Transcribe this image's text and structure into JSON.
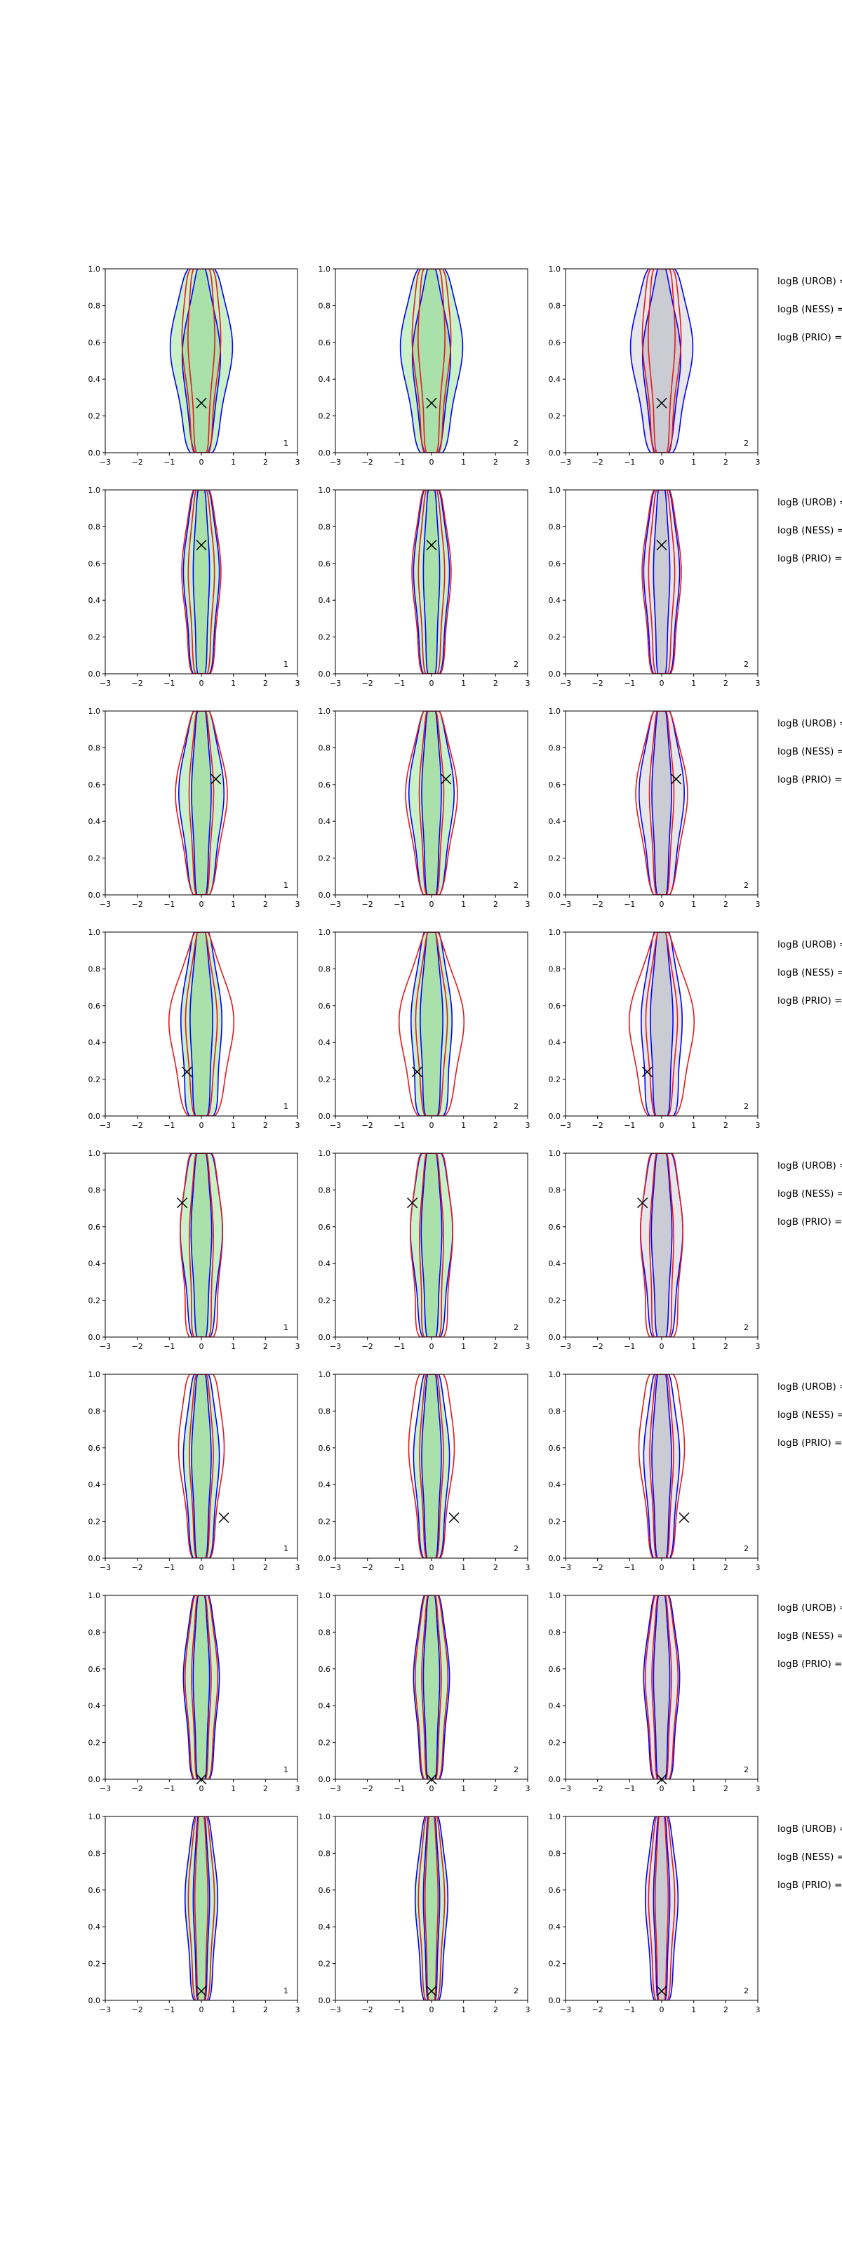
{
  "figure": {
    "rows": 8,
    "cols": 3
  },
  "chart_data": {
    "type": "contour-grid",
    "xlim": [
      -3,
      3
    ],
    "ylim": [
      0,
      1
    ],
    "xticks": [
      -3,
      -2,
      -1,
      0,
      1,
      2,
      3
    ],
    "yticks": [
      0.0,
      0.2,
      0.4,
      0.6,
      0.8,
      1.0
    ],
    "xtick_labels": [
      "−3",
      "−2",
      "−1",
      "0",
      "1",
      "2",
      "3"
    ],
    "ytick_labels": [
      "0.0",
      "0.2",
      "0.4",
      "0.6",
      "0.8",
      "1.0"
    ],
    "colors": {
      "blue": "#0000ff",
      "red": "#e41a1c",
      "green_fill": "#9be59b",
      "gray_fill": "#c9c9d3",
      "marker": "#000000"
    },
    "panel_labels": [
      "1",
      "2",
      "2"
    ],
    "side_labels": [
      "logB (UROB) =",
      "logB (NESS) =",
      "logB (PRIO) ="
    ],
    "rows": [
      {
        "marker": [
          0.0,
          0.27
        ],
        "blue_a": [
          [
            0.75,
            1.0,
            1.0
          ],
          [
            0.45,
            0.8,
            0.3
          ]
        ],
        "red_a": [
          [
            0.5,
            0.45,
            0.85
          ],
          [
            0.35,
            0.3,
            0.6
          ]
        ]
      },
      {
        "marker": [
          0.0,
          0.7
        ],
        "blue_a": [
          [
            0.55,
            0.55,
            0.55
          ],
          [
            0.25,
            0.25,
            0.25
          ]
        ],
        "red_a": [
          [
            0.6,
            0.6,
            0.6
          ],
          [
            0.4,
            0.4,
            0.4
          ]
        ]
      },
      {
        "marker": [
          0.45,
          0.63
        ],
        "blue_a": [
          [
            0.55,
            0.8,
            0.6
          ],
          [
            0.3,
            0.3,
            0.3
          ]
        ],
        "red_a": [
          [
            0.55,
            1.0,
            0.6
          ],
          [
            0.35,
            0.4,
            0.35
          ]
        ]
      },
      {
        "marker": [
          -0.45,
          0.24
        ],
        "blue_a": [
          [
            0.8,
            0.6,
            0.55
          ],
          [
            0.4,
            0.35,
            0.3
          ]
        ],
        "red_a": [
          [
            0.9,
            1.3,
            0.5
          ],
          [
            0.45,
            0.6,
            0.3
          ]
        ]
      },
      {
        "marker": [
          -0.6,
          0.73
        ],
        "blue_a": [
          [
            0.6,
            0.6,
            0.75
          ],
          [
            0.3,
            0.3,
            0.35
          ]
        ],
        "red_a": [
          [
            0.8,
            0.5,
            0.8
          ],
          [
            0.5,
            0.3,
            0.4
          ]
        ]
      },
      {
        "marker": [
          0.7,
          0.22
        ],
        "blue_a": [
          [
            0.55,
            0.55,
            0.55
          ],
          [
            0.3,
            0.3,
            0.3
          ]
        ],
        "red_a": [
          [
            0.6,
            0.6,
            0.9
          ],
          [
            0.35,
            0.35,
            0.4
          ]
        ]
      },
      {
        "marker": [
          0.0,
          0.0
        ],
        "blue_a": [
          [
            0.55,
            0.55,
            0.55
          ],
          [
            0.25,
            0.25,
            0.25
          ]
        ],
        "red_a": [
          [
            0.5,
            0.5,
            0.5
          ],
          [
            0.3,
            0.3,
            0.3
          ]
        ]
      },
      {
        "marker": [
          0.0,
          0.05
        ],
        "blue_a": [
          [
            0.5,
            0.5,
            0.5
          ],
          [
            0.25,
            0.25,
            0.25
          ]
        ],
        "red_a": [
          [
            0.4,
            0.4,
            0.4
          ],
          [
            0.2,
            0.2,
            0.2
          ]
        ]
      }
    ]
  }
}
